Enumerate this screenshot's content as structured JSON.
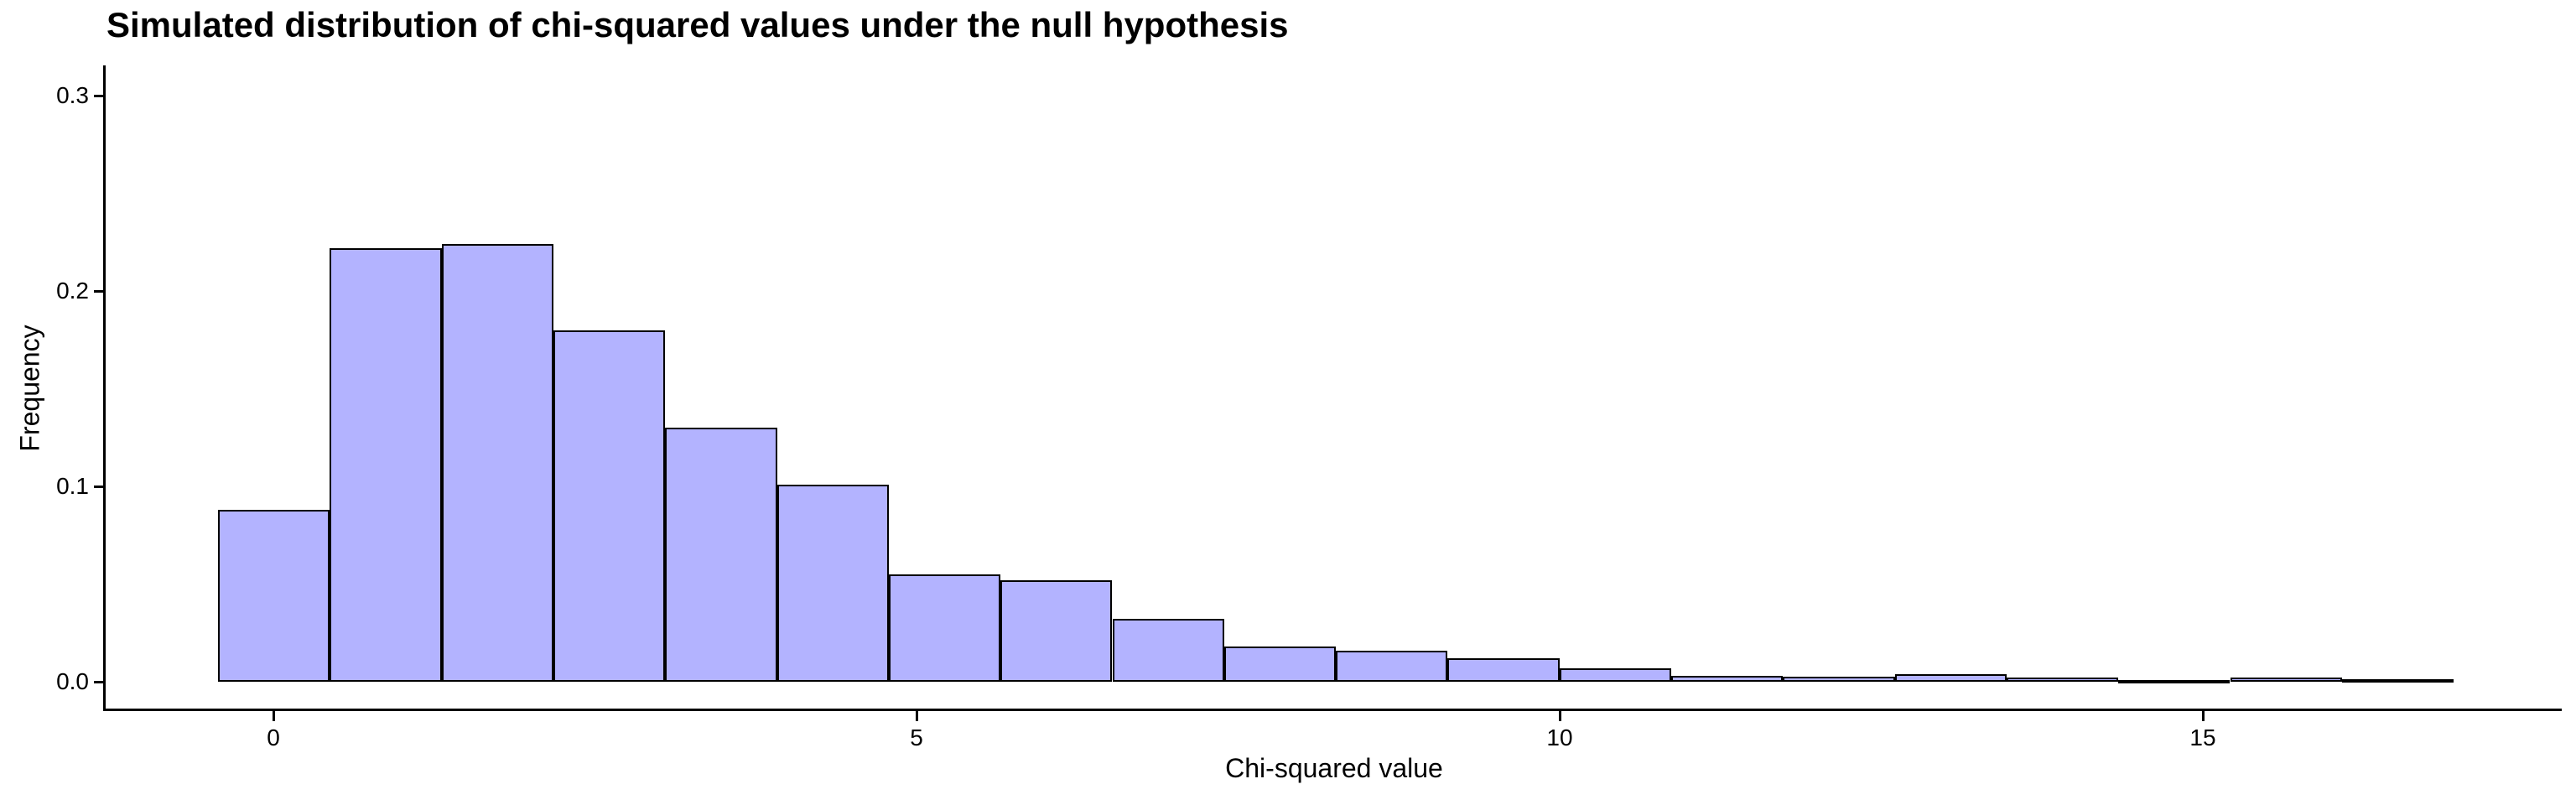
{
  "title": "Simulated distribution of chi-squared values under the null hypothesis",
  "chart_data": {
    "type": "bar",
    "subtype": "histogram",
    "title": "Simulated distribution of chi-squared values under the null hypothesis",
    "xlabel": "Chi-squared value",
    "ylabel": "Frequency",
    "grid": false,
    "legend": false,
    "xlim": [
      -1.3,
      17.8
    ],
    "ylim": [
      -0.015,
      0.315
    ],
    "x_tick_values": [
      0,
      5,
      10,
      15
    ],
    "x_tick_labels": [
      "0",
      "5",
      "10",
      "15"
    ],
    "y_tick_values": [
      0.0,
      0.1,
      0.2,
      0.3
    ],
    "y_tick_labels": [
      "0.0",
      "0.1",
      "0.2",
      "0.3"
    ],
    "bin_start": -0.43,
    "bin_width": 0.869,
    "frequencies": [
      0.088,
      0.222,
      0.224,
      0.18,
      0.13,
      0.101,
      0.055,
      0.052,
      0.032,
      0.018,
      0.016,
      0.012,
      0.007,
      0.003,
      0.0025,
      0.004,
      0.002,
      0.0005,
      0.002,
      0.0015
    ],
    "bar_fill_color": "#B3B3FF",
    "bar_stroke_color": "#000000",
    "axis_color": "#000000",
    "text_color": "#000000",
    "background_color": "#FFFFFF"
  }
}
